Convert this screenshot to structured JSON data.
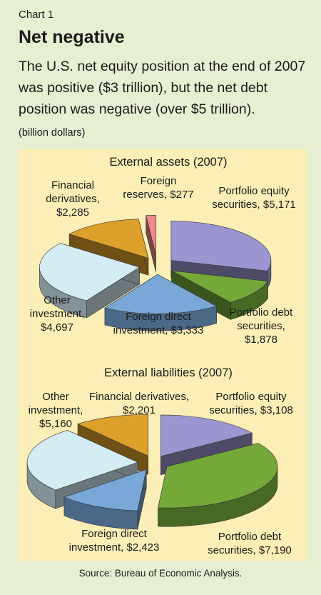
{
  "header": {
    "chart_number": "Chart 1",
    "title": "Net negative",
    "subtitle": "The U.S. net equity position at the end of 2007 was positive ($3 trillion), but the net debt position was negative (over $5 trillion).",
    "unit": "(billion dollars)"
  },
  "source": "Source: Bureau of Economic Analysis.",
  "colors": {
    "page_background": "#e7efd2",
    "panel_background": "#fbeeb6",
    "portfolio_equity": "#9b96d2",
    "portfolio_debt": "#74a93a",
    "foreign_direct": "#79a7d8",
    "other_investment": "#d4ecf4",
    "financial_derivatives": "#dda12b",
    "foreign_reserves": "#f0888c"
  },
  "chart_data": [
    {
      "type": "pie",
      "title": "External assets (2007)",
      "unit": "billion dollars",
      "slices": [
        {
          "name": "Portfolio equity securities",
          "label_lines": [
            "Portfolio equity",
            "securities, $5,171"
          ],
          "value": 5171,
          "color": "#9b96d2"
        },
        {
          "name": "Portfolio debt securities",
          "label_lines": [
            "Portfolio debt",
            "securities,",
            "$1,878"
          ],
          "value": 1878,
          "color": "#74a93a"
        },
        {
          "name": "Foreign direct investment",
          "label_lines": [
            "Foreign direct",
            "investment, $3,333"
          ],
          "value": 3333,
          "color": "#79a7d8"
        },
        {
          "name": "Other investment",
          "label_lines": [
            "Other",
            "investment,",
            "$4,697"
          ],
          "value": 4697,
          "color": "#d4ecf4"
        },
        {
          "name": "Financial derivatives",
          "label_lines": [
            "Financial",
            "derivatives,",
            "$2,285"
          ],
          "value": 2285,
          "color": "#dda12b"
        },
        {
          "name": "Foreign reserves",
          "label_lines": [
            "Foreign",
            "reserves, $277"
          ],
          "value": 277,
          "color": "#f0888c"
        }
      ]
    },
    {
      "type": "pie",
      "title": "External liabilities (2007)",
      "unit": "billion dollars",
      "slices": [
        {
          "name": "Portfolio equity securities",
          "label_lines": [
            "Portfolio equity",
            "securities, $3,108"
          ],
          "value": 3108,
          "color": "#9b96d2"
        },
        {
          "name": "Portfolio debt securities",
          "label_lines": [
            "Portfolio debt",
            "securities, $7,190"
          ],
          "value": 7190,
          "color": "#74a93a"
        },
        {
          "name": "Foreign direct investment",
          "label_lines": [
            "Foreign direct",
            "investment, $2,423"
          ],
          "value": 2423,
          "color": "#79a7d8"
        },
        {
          "name": "Other investment",
          "label_lines": [
            "Other",
            "investment,",
            "$5,160"
          ],
          "value": 5160,
          "color": "#d4ecf4"
        },
        {
          "name": "Financial derivatives",
          "label_lines": [
            "Financial derivatives,",
            "$2,201"
          ],
          "value": 2201,
          "color": "#dda12b"
        }
      ]
    }
  ]
}
